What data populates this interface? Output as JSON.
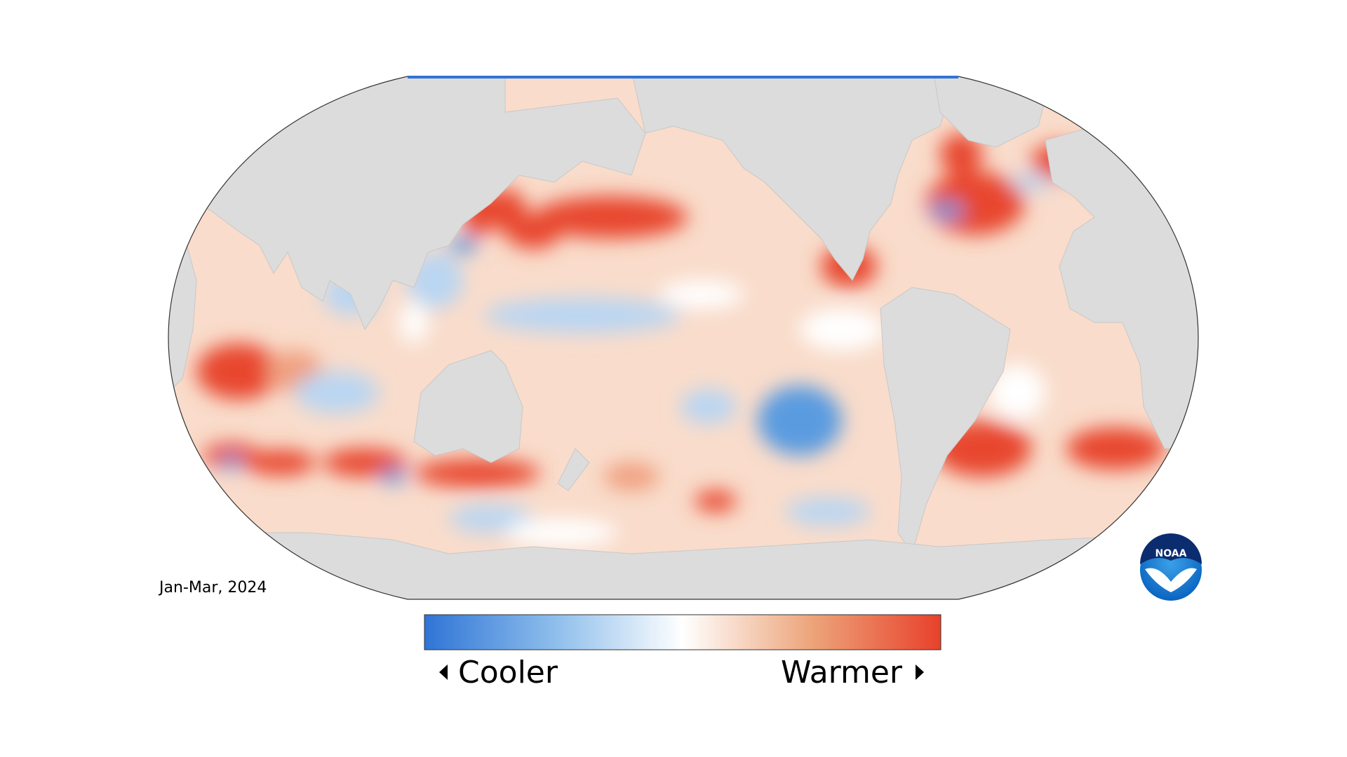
{
  "date_label": "Jan-Mar, 2024",
  "legend": {
    "low_label": "Cooler",
    "high_label": "Warmer"
  },
  "logo": {
    "text": "NOAA"
  }
}
